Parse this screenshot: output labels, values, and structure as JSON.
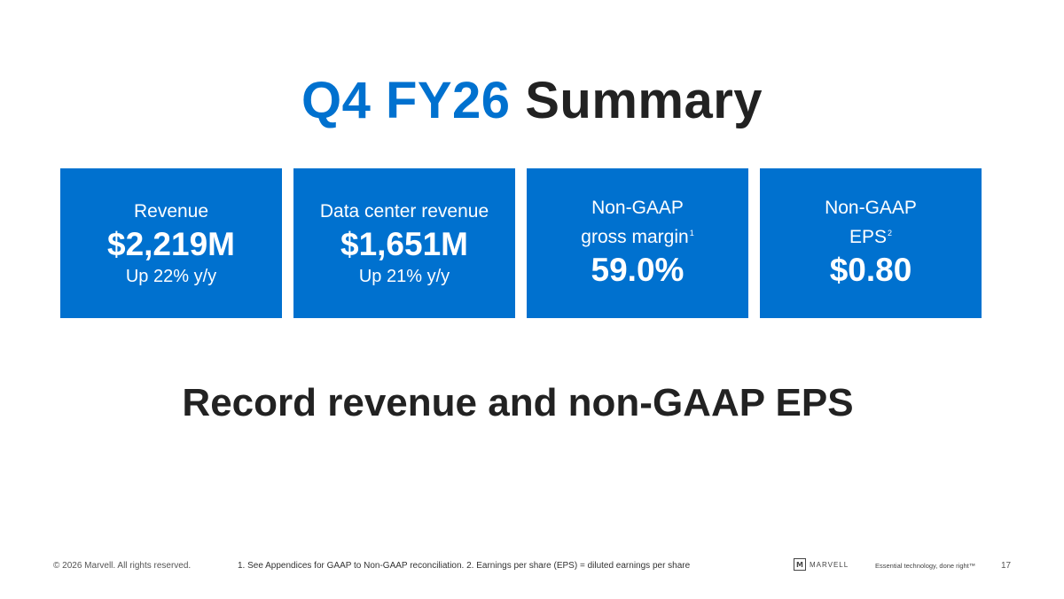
{
  "title": {
    "accent": "Q4 FY26",
    "rest": "Summary"
  },
  "cards": [
    {
      "label": "Revenue",
      "value": "$2,219M",
      "sub": "Up 22% y/y"
    },
    {
      "label": "Data center revenue",
      "value": "$1,651M",
      "sub": "Up 21% y/y"
    },
    {
      "label_line1": "Non-GAAP",
      "label_line2": "gross margin",
      "footnote": "1",
      "value": "59.0%"
    },
    {
      "label_line1": "Non-GAAP",
      "label_line2": "EPS",
      "footnote": "2",
      "value": "$0.80"
    }
  ],
  "headline": "Record revenue and non-GAAP EPS",
  "footer": {
    "copyright": "© 2026 Marvell. All rights reserved.",
    "note": "1. See Appendices for GAAP to Non-GAAP reconciliation. 2. Earnings per share (EPS) = diluted earnings per share",
    "logo_mark": "M",
    "logo_text": "MARVELL",
    "tagline": "Essential technology, done right™",
    "page": "17"
  },
  "colors": {
    "accent": "#0071cf",
    "text": "#222222"
  }
}
